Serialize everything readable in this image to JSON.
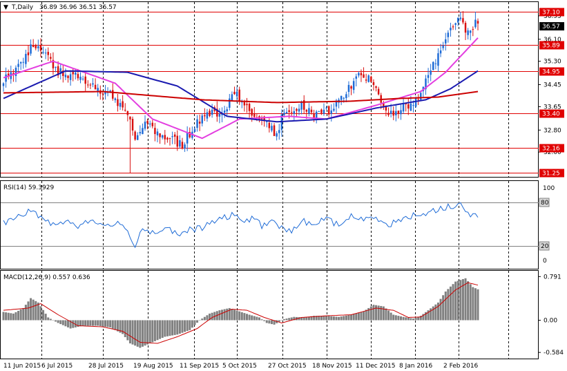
{
  "chart_data": [
    {
      "type": "candlestick",
      "panel": "price",
      "header": {
        "arrow": "▼",
        "symbol": "T,Daily",
        "ohlc": "36.89 36.96 36.51 36.57"
      },
      "y_axis_labels": [
        "36.95",
        "36.10",
        "35.30",
        "34.45",
        "33.65",
        "32.80",
        "32.00"
      ],
      "ylim": [
        31.1,
        37.45
      ],
      "grid": "vertical dashed",
      "horizontal_levels": [
        {
          "value": 37.1,
          "label": "37.10"
        },
        {
          "value": 35.89,
          "label": "35.89"
        },
        {
          "value": 34.95,
          "label": "34.95"
        },
        {
          "value": 33.4,
          "label": "33.40"
        },
        {
          "value": 32.16,
          "label": "32.16"
        },
        {
          "value": 31.25,
          "label": "31.25"
        }
      ],
      "current_price": {
        "value": 36.57,
        "label": "36.57"
      },
      "candles": {
        "date_labels": [
          "11 Jun 2015",
          "6 Jul 2015",
          "28 Jul 2015",
          "19 Aug 2015",
          "11 Sep 2015",
          "5 Oct 2015",
          "27 Oct 2015",
          "18 Nov 2015",
          "11 Dec 2015",
          "8 Jan 2016",
          "2 Feb 2016"
        ],
        "close_path": [
          [
            0,
            34.6
          ],
          [
            8,
            35.2
          ],
          [
            11,
            35.9
          ],
          [
            15,
            35.7
          ],
          [
            22,
            34.9
          ],
          [
            30,
            34.7
          ],
          [
            37,
            34.4
          ],
          [
            44,
            34.0
          ],
          [
            50,
            33.4
          ],
          [
            53,
            32.4
          ],
          [
            57,
            33.1
          ],
          [
            63,
            32.6
          ],
          [
            69,
            32.4
          ],
          [
            72,
            32.3
          ],
          [
            78,
            33.1
          ],
          [
            84,
            33.4
          ],
          [
            90,
            33.6
          ],
          [
            93,
            34.2
          ],
          [
            99,
            33.4
          ],
          [
            105,
            33.2
          ],
          [
            110,
            32.6
          ],
          [
            113,
            33.5
          ],
          [
            119,
            33.7
          ],
          [
            126,
            33.3
          ],
          [
            131,
            33.5
          ],
          [
            137,
            34.0
          ],
          [
            143,
            34.8
          ],
          [
            148,
            34.6
          ],
          [
            154,
            33.4
          ],
          [
            160,
            33.6
          ],
          [
            166,
            33.9
          ],
          [
            173,
            35.1
          ],
          [
            180,
            36.4
          ],
          [
            184,
            36.9
          ],
          [
            187,
            36.3
          ],
          [
            190,
            36.7
          ],
          [
            191,
            36.57
          ]
        ],
        "colors": {
          "up": "#1e6bd6",
          "down": "#d81010"
        }
      },
      "moving_averages": [
        {
          "color": "#e33ee0",
          "path": [
            [
              0,
              34.7
            ],
            [
              20,
              35.3
            ],
            [
              45,
              34.5
            ],
            [
              60,
              33.2
            ],
            [
              80,
              32.5
            ],
            [
              95,
              33.2
            ],
            [
              115,
              33.3
            ],
            [
              130,
              33.2
            ],
            [
              150,
              33.7
            ],
            [
              168,
              34.2
            ],
            [
              178,
              34.9
            ],
            [
              191,
              36.15
            ]
          ]
        },
        {
          "color": "#1a1ab0",
          "path": [
            [
              0,
              33.95
            ],
            [
              25,
              34.95
            ],
            [
              50,
              34.9
            ],
            [
              70,
              34.4
            ],
            [
              90,
              33.3
            ],
            [
              110,
              33.1
            ],
            [
              130,
              33.2
            ],
            [
              150,
              33.6
            ],
            [
              170,
              33.9
            ],
            [
              180,
              34.3
            ],
            [
              191,
              34.95
            ]
          ]
        },
        {
          "color": "#cc0000",
          "path": [
            [
              0,
              34.15
            ],
            [
              40,
              34.2
            ],
            [
              80,
              33.9
            ],
            [
              110,
              33.8
            ],
            [
              140,
              33.85
            ],
            [
              160,
              33.95
            ],
            [
              175,
              34.0
            ],
            [
              191,
              34.2
            ]
          ]
        }
      ]
    },
    {
      "type": "line",
      "panel": "rsi",
      "title": "RSI(14) 59.3929",
      "y_axis_labels": [
        "100",
        "80",
        "20",
        "0"
      ],
      "ylim": [
        0,
        100
      ],
      "levels": [
        {
          "value": 80,
          "label": "80"
        },
        {
          "value": 20,
          "label": "20"
        }
      ],
      "color": "#1e6bd6",
      "values_path": [
        [
          0,
          52
        ],
        [
          6,
          60
        ],
        [
          10,
          68
        ],
        [
          15,
          60
        ],
        [
          20,
          50
        ],
        [
          25,
          55
        ],
        [
          30,
          48
        ],
        [
          35,
          55
        ],
        [
          40,
          48
        ],
        [
          45,
          52
        ],
        [
          50,
          40
        ],
        [
          53,
          22
        ],
        [
          56,
          45
        ],
        [
          60,
          38
        ],
        [
          65,
          45
        ],
        [
          70,
          35
        ],
        [
          75,
          42
        ],
        [
          80,
          45
        ],
        [
          84,
          52
        ],
        [
          88,
          58
        ],
        [
          92,
          62
        ],
        [
          96,
          55
        ],
        [
          100,
          58
        ],
        [
          104,
          48
        ],
        [
          108,
          55
        ],
        [
          112,
          45
        ],
        [
          116,
          38
        ],
        [
          120,
          55
        ],
        [
          125,
          50
        ],
        [
          130,
          58
        ],
        [
          135,
          48
        ],
        [
          140,
          62
        ],
        [
          145,
          55
        ],
        [
          150,
          60
        ],
        [
          155,
          50
        ],
        [
          160,
          55
        ],
        [
          165,
          62
        ],
        [
          170,
          66
        ],
        [
          175,
          70
        ],
        [
          180,
          75
        ],
        [
          184,
          78
        ],
        [
          187,
          62
        ],
        [
          190,
          68
        ],
        [
          191,
          59.4
        ]
      ]
    },
    {
      "type": "bar+line",
      "panel": "macd",
      "title": "MACD(12,26,9) 0.557 0.636",
      "y_axis_labels": [
        "0.791",
        "0.00",
        "-0.584"
      ],
      "ylim": [
        -0.62,
        0.82
      ],
      "histogram_color": "#808080",
      "signal_color": "#cc0000",
      "histogram_path": [
        [
          0,
          0.15
        ],
        [
          4,
          0.12
        ],
        [
          8,
          0.22
        ],
        [
          11,
          0.4
        ],
        [
          14,
          0.32
        ],
        [
          18,
          0.05
        ],
        [
          22,
          -0.05
        ],
        [
          27,
          -0.15
        ],
        [
          32,
          -0.1
        ],
        [
          38,
          -0.1
        ],
        [
          43,
          -0.13
        ],
        [
          48,
          -0.25
        ],
        [
          51,
          -0.42
        ],
        [
          55,
          -0.5
        ],
        [
          60,
          -0.4
        ],
        [
          65,
          -0.3
        ],
        [
          70,
          -0.26
        ],
        [
          75,
          -0.18
        ],
        [
          79,
          0.0
        ],
        [
          83,
          0.12
        ],
        [
          87,
          0.18
        ],
        [
          91,
          0.22
        ],
        [
          95,
          0.16
        ],
        [
          99,
          0.1
        ],
        [
          103,
          0.05
        ],
        [
          106,
          -0.05
        ],
        [
          109,
          -0.08
        ],
        [
          113,
          0.02
        ],
        [
          117,
          0.06
        ],
        [
          121,
          0.05
        ],
        [
          125,
          0.08
        ],
        [
          130,
          0.08
        ],
        [
          135,
          0.06
        ],
        [
          140,
          0.1
        ],
        [
          145,
          0.16
        ],
        [
          149,
          0.28
        ],
        [
          153,
          0.25
        ],
        [
          157,
          0.1
        ],
        [
          161,
          0.06
        ],
        [
          165,
          0.03
        ],
        [
          168,
          0.08
        ],
        [
          171,
          0.18
        ],
        [
          175,
          0.32
        ],
        [
          178,
          0.52
        ],
        [
          182,
          0.7
        ],
        [
          186,
          0.76
        ],
        [
          189,
          0.6
        ],
        [
          191,
          0.56
        ]
      ],
      "signal_path": [
        [
          0,
          0.18
        ],
        [
          10,
          0.22
        ],
        [
          15,
          0.3
        ],
        [
          22,
          0.1
        ],
        [
          30,
          -0.1
        ],
        [
          40,
          -0.12
        ],
        [
          48,
          -0.2
        ],
        [
          55,
          -0.4
        ],
        [
          62,
          -0.42
        ],
        [
          70,
          -0.3
        ],
        [
          78,
          -0.15
        ],
        [
          84,
          0.05
        ],
        [
          92,
          0.2
        ],
        [
          98,
          0.18
        ],
        [
          105,
          0.05
        ],
        [
          112,
          -0.05
        ],
        [
          120,
          0.05
        ],
        [
          130,
          0.08
        ],
        [
          140,
          0.1
        ],
        [
          150,
          0.22
        ],
        [
          157,
          0.18
        ],
        [
          163,
          0.05
        ],
        [
          168,
          0.06
        ],
        [
          175,
          0.25
        ],
        [
          182,
          0.55
        ],
        [
          187,
          0.68
        ],
        [
          191,
          0.636
        ]
      ]
    }
  ]
}
